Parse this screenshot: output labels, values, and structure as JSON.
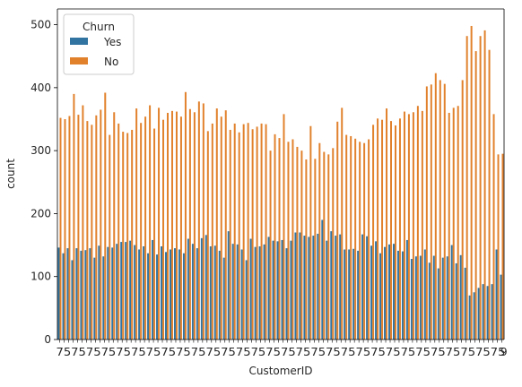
{
  "chart_data": {
    "type": "bar",
    "xlabel": "CustomerID",
    "ylabel": "count",
    "ylim": [
      0,
      525
    ],
    "yticks": [
      0,
      100,
      200,
      300,
      400,
      500
    ],
    "x_ticklabels_visible": [
      "7",
      "9"
    ],
    "legend": {
      "title": "Churn",
      "placement": "top-left"
    },
    "colors": {
      "Yes": "#3274a1",
      "No": "#e1812c"
    },
    "n_categories": 100,
    "series": [
      {
        "name": "Yes",
        "values": [
          146,
          137,
          145,
          126,
          145,
          141,
          142,
          145,
          130,
          149,
          132,
          147,
          146,
          152,
          155,
          155,
          157,
          150,
          143,
          148,
          137,
          158,
          135,
          148,
          139,
          143,
          145,
          143,
          137,
          160,
          152,
          145,
          161,
          166,
          148,
          149,
          141,
          130,
          172,
          152,
          151,
          143,
          126,
          160,
          147,
          148,
          151,
          163,
          157,
          156,
          158,
          145,
          157,
          170,
          170,
          165,
          163,
          165,
          168,
          190,
          157,
          172,
          165,
          167,
          143,
          143,
          144,
          141,
          167,
          164,
          149,
          156,
          137,
          147,
          151,
          152,
          141,
          140,
          158,
          128,
          132,
          133,
          143,
          122,
          133,
          113,
          130,
          132,
          150,
          121,
          134,
          114,
          70,
          75,
          82,
          88,
          85,
          88,
          143,
          103
        ]
      },
      {
        "name": "No",
        "values": [
          352,
          350,
          355,
          390,
          357,
          372,
          347,
          341,
          356,
          365,
          392,
          325,
          361,
          343,
          330,
          328,
          333,
          367,
          344,
          354,
          372,
          335,
          368,
          349,
          360,
          363,
          362,
          354,
          393,
          366,
          361,
          378,
          375,
          331,
          343,
          367,
          354,
          364,
          333,
          343,
          329,
          342,
          344,
          334,
          338,
          343,
          342,
          300,
          326,
          320,
          358,
          314,
          318,
          306,
          300,
          286,
          339,
          287,
          312,
          298,
          294,
          304,
          346,
          368,
          325,
          323,
          319,
          314,
          312,
          318,
          341,
          351,
          349,
          367,
          347,
          340,
          351,
          362,
          358,
          361,
          371,
          363,
          402,
          405,
          423,
          412,
          406,
          360,
          368,
          371,
          412,
          482,
          498,
          458,
          482,
          491,
          460,
          358,
          294,
          295
        ]
      }
    ]
  }
}
